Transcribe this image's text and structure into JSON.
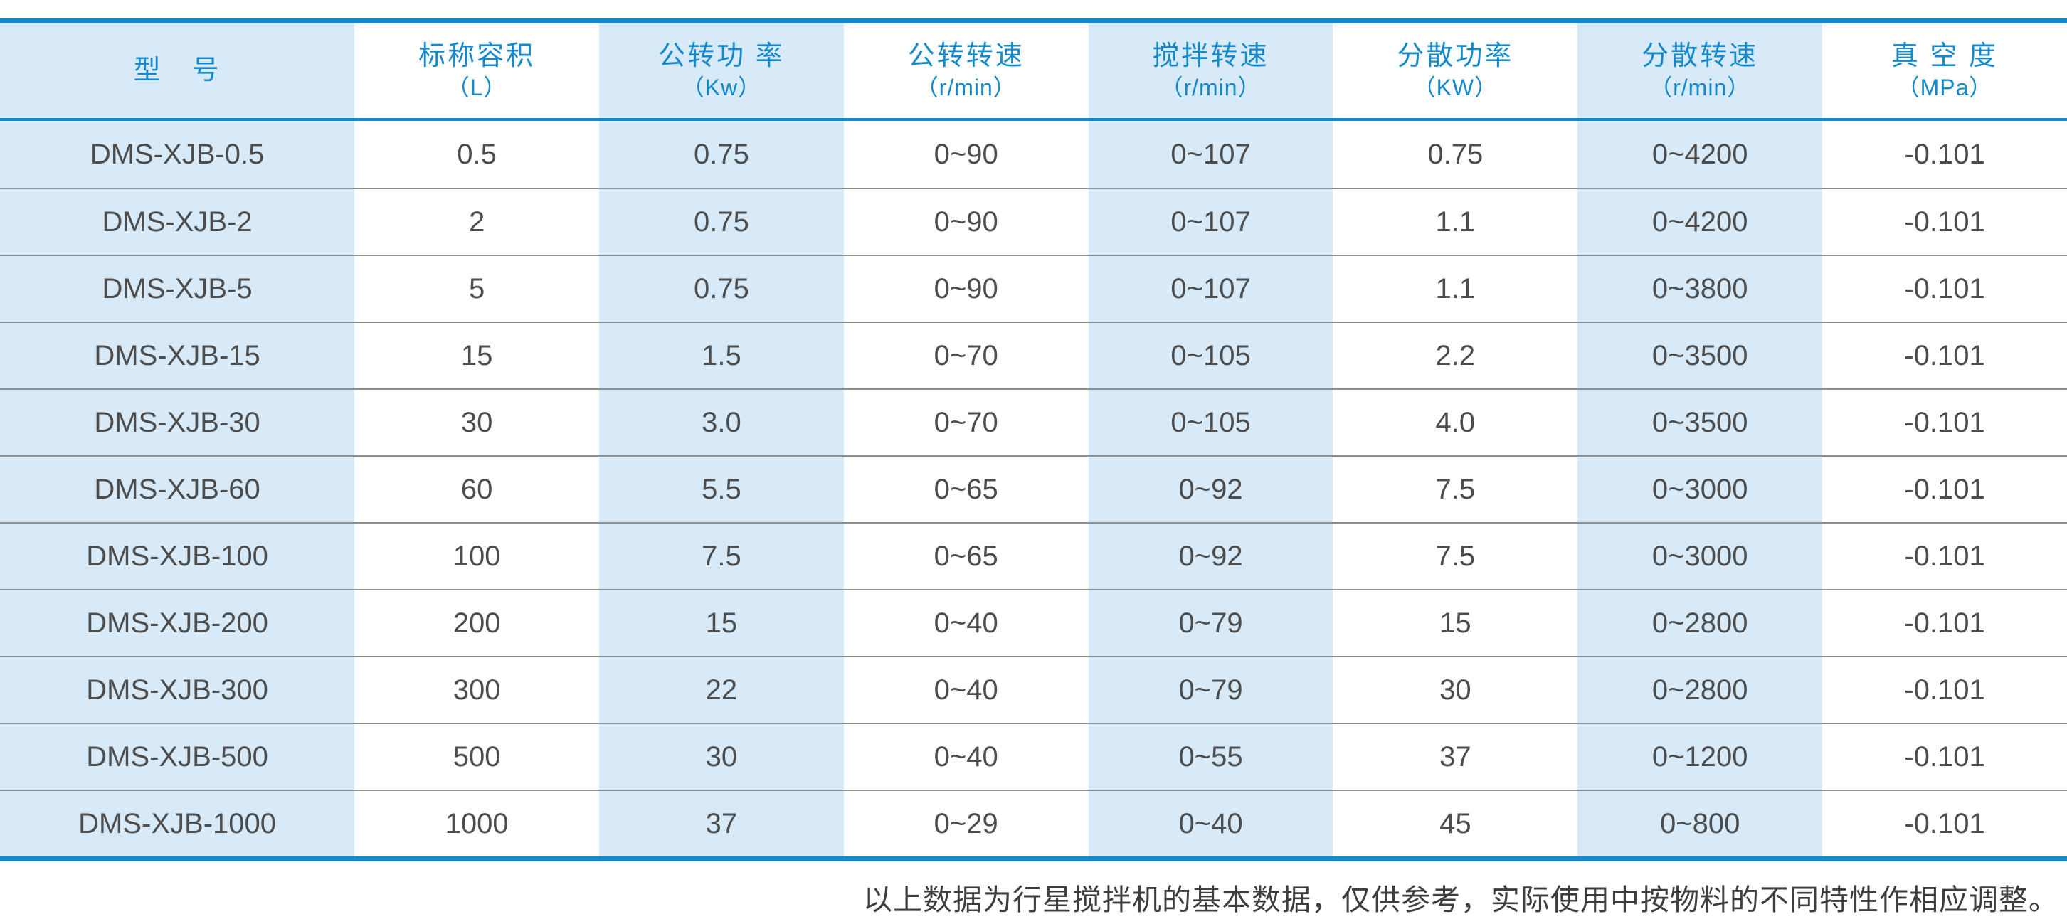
{
  "colors": {
    "accent": "#1489cb",
    "stripe": "#d8eaf8",
    "body_text": "#4d4d4d",
    "row_line": "#8f8f8f"
  },
  "table": {
    "columns": [
      {
        "label": "型　号",
        "unit": ""
      },
      {
        "label": "标称容积",
        "unit": "（L）"
      },
      {
        "label": "公转功 率",
        "unit": "（Kw）"
      },
      {
        "label": "公转转速",
        "unit": "（r/min）"
      },
      {
        "label": "搅拌转速",
        "unit": "（r/min）"
      },
      {
        "label": "分散功率",
        "unit": "（KW）"
      },
      {
        "label": "分散转速",
        "unit": "（r/min）"
      },
      {
        "label": "真 空 度",
        "unit": "（MPa）"
      }
    ],
    "rows": [
      [
        "DMS-XJB-0.5",
        "0.5",
        "0.75",
        "0~90",
        "0~107",
        "0.75",
        "0~4200",
        "-0.101"
      ],
      [
        "DMS-XJB-2",
        "2",
        "0.75",
        "0~90",
        "0~107",
        "1.1",
        "0~4200",
        "-0.101"
      ],
      [
        "DMS-XJB-5",
        "5",
        "0.75",
        "0~90",
        "0~107",
        "1.1",
        "0~3800",
        "-0.101"
      ],
      [
        "DMS-XJB-15",
        "15",
        "1.5",
        "0~70",
        "0~105",
        "2.2",
        "0~3500",
        "-0.101"
      ],
      [
        "DMS-XJB-30",
        "30",
        "3.0",
        "0~70",
        "0~105",
        "4.0",
        "0~3500",
        "-0.101"
      ],
      [
        "DMS-XJB-60",
        "60",
        "5.5",
        "0~65",
        "0~92",
        "7.5",
        "0~3000",
        "-0.101"
      ],
      [
        "DMS-XJB-100",
        "100",
        "7.5",
        "0~65",
        "0~92",
        "7.5",
        "0~3000",
        "-0.101"
      ],
      [
        "DMS-XJB-200",
        "200",
        "15",
        "0~40",
        "0~79",
        "15",
        "0~2800",
        "-0.101"
      ],
      [
        "DMS-XJB-300",
        "300",
        "22",
        "0~40",
        "0~79",
        "30",
        "0~2800",
        "-0.101"
      ],
      [
        "DMS-XJB-500",
        "500",
        "30",
        "0~40",
        "0~55",
        "37",
        "0~1200",
        "-0.101"
      ],
      [
        "DMS-XJB-1000",
        "1000",
        "37",
        "0~29",
        "0~40",
        "45",
        "0~800",
        "-0.101"
      ]
    ]
  },
  "footnote": "以上数据为行星搅拌机的基本数据，仅供参考，实际使用中按物料的不同特性作相应调整。"
}
